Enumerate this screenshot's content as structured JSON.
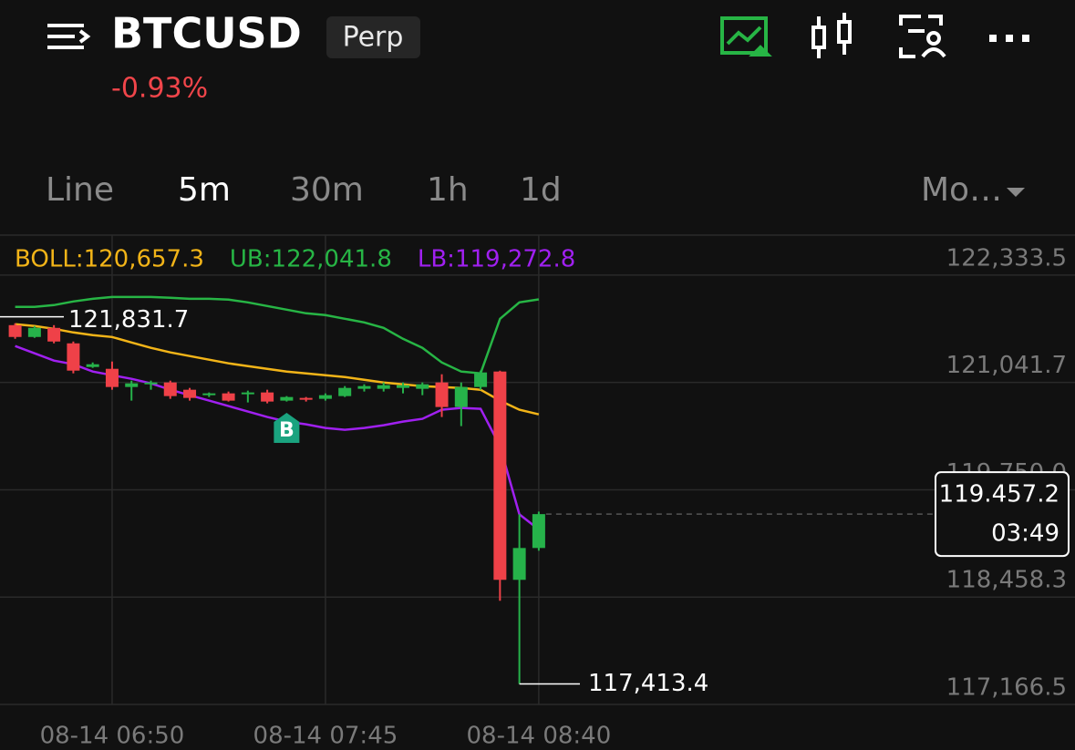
{
  "header": {
    "symbol": "BTCUSD",
    "badge": "Perp",
    "change": "-0.93%"
  },
  "tabs": [
    "Line",
    "5m",
    "30m",
    "1h",
    "1d",
    "Mo…"
  ],
  "active_tab": 1,
  "chart_data": {
    "type": "candlestick",
    "categories": [
      null,
      null,
      null,
      null,
      null,
      "08-14 06:50",
      null,
      null,
      null,
      null,
      null,
      null,
      null,
      null,
      null,
      null,
      "08-14 07:45",
      null,
      null,
      null,
      null,
      null,
      null,
      null,
      null,
      null,
      null,
      "08-14 08:40"
    ],
    "open": [
      121731.4,
      121589.1,
      121698.5,
      121512.4,
      121227.8,
      121205.9,
      120987.0,
      121019.8,
      121041.7,
      120954.1,
      120888.4,
      120910.3,
      120899.4,
      120921.3,
      120822.8,
      120855.6,
      120844.7,
      120877.5,
      120965.1,
      120965.1,
      120976.0,
      120965.1,
      121041.7,
      120746.1,
      120987.0,
      121173.1,
      118666.2,
      119049.3
    ],
    "high": [
      121753.3,
      121720.4,
      121731.4,
      121534.3,
      121282.5,
      121293.5,
      121063.6,
      121063.6,
      121063.6,
      120976.0,
      120921.3,
      120932.2,
      120943.2,
      120954.1,
      120877.5,
      120866.5,
      120910.3,
      120997.9,
      121019.8,
      121041.7,
      121041.7,
      121041.7,
      121140.2,
      121041.7,
      121184.0,
      121184.0,
      119454.4,
      119487.2
    ],
    "low": [
      121567.2,
      121578.1,
      121512.4,
      121151.2,
      121216.9,
      120954.1,
      120822.8,
      120954.1,
      120844.7,
      120822.8,
      120866.5,
      120811.8,
      120800.9,
      120789.9,
      120811.8,
      120811.8,
      120822.8,
      120866.5,
      120932.2,
      120932.2,
      120910.3,
      120888.4,
      120625.7,
      120516.2,
      120954.1,
      118414.4,
      117413.4,
      119016.5
    ],
    "close": [
      121589.1,
      121698.5,
      121534.3,
      121184.0,
      121260.6,
      120987.0,
      121030.8,
      121041.7,
      120877.5,
      120855.6,
      120910.3,
      120822.8,
      120921.3,
      120811.8,
      120866.5,
      120833.7,
      120888.4,
      120976.0,
      120997.9,
      121008.9,
      121008.9,
      121019.8,
      120746.1,
      120987.0,
      121162.1,
      118666.2,
      119049.3,
      119457.2
    ],
    "up_color": "#26b24a",
    "down_color": "#ef4148",
    "series": [
      {
        "name": "BOLL:120,657.3",
        "color": "#f2b418",
        "values": [
          121742.3,
          121720.4,
          121687.6,
          121643.8,
          121610.9,
          121589.1,
          121523.4,
          121457.7,
          121403.0,
          121359.2,
          121315.4,
          121271.6,
          121238.7,
          121205.9,
          121173.1,
          121151.2,
          121129.3,
          121107.4,
          121074.5,
          121041.7,
          121019.8,
          120997.9,
          120987.0,
          120976.0,
          120954.1,
          120822.8,
          120713.3,
          120657.3
        ]
      },
      {
        "name": "UB:122,041.8",
        "color": "#27b545",
        "values": [
          121950.3,
          121950.3,
          121972.2,
          122016.0,
          122048.8,
          122070.7,
          122070.7,
          122070.7,
          122059.8,
          122048.8,
          122048.8,
          122037.9,
          122005.0,
          121961.2,
          121917.5,
          121873.7,
          121851.8,
          121808.0,
          121764.2,
          121698.5,
          121567.2,
          121457.7,
          121282.5,
          121173.1,
          121151.2,
          121808.0,
          122005.0,
          122041.8
        ]
      },
      {
        "name": "LB:119,272.8",
        "color": "#a020f0",
        "values": [
          121479.6,
          121392.0,
          121304.4,
          121260.6,
          121173.1,
          121129.3,
          121085.5,
          121030.8,
          120954.1,
          120888.4,
          120822.8,
          120757.1,
          120691.4,
          120625.7,
          120571.0,
          120538.1,
          120494.3,
          120472.5,
          120494.3,
          120527.2,
          120571.0,
          120603.8,
          120713.3,
          120735.2,
          120724.2,
          120275.4,
          119454.4,
          119272.8
        ]
      }
    ],
    "ylim": [
      117166.5,
      122814.9
    ],
    "yticks": [
      {
        "value": 122333.5,
        "label": "122,333.5"
      },
      {
        "value": 121041.7,
        "label": "121,041.7"
      },
      {
        "value": 119750.0,
        "label": "119,750.0"
      },
      {
        "value": 118458.3,
        "label": "118,458.3"
      },
      {
        "value": 117166.5,
        "label": "117,166.5"
      }
    ],
    "grid": true,
    "annotations": [
      {
        "value": 121831.7,
        "label": "121,831.7"
      },
      {
        "value": 117413.4,
        "label": "117,413.4"
      }
    ],
    "signal": "B",
    "last_price": {
      "value": 119457.2,
      "label": "119.457.2",
      "countdown": "03:49"
    }
  }
}
